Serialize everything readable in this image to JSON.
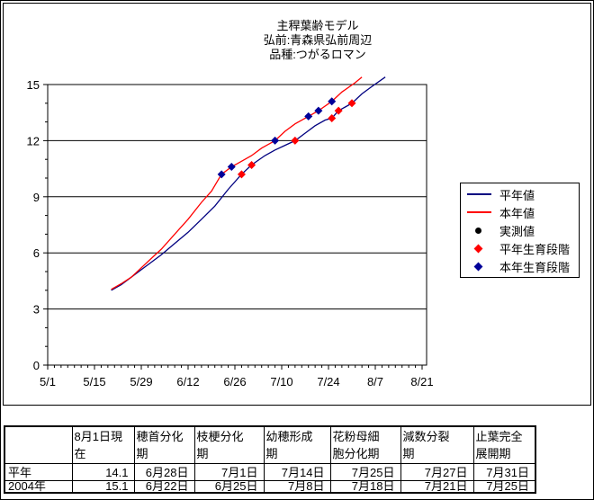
{
  "title": {
    "line1": "主稈葉齢モデル",
    "line2": "弘前:青森県弘前周辺",
    "line3": "品種:つがるロマン"
  },
  "colors": {
    "average_line": "#000080",
    "current_line": "#ff0000",
    "observed_dot": "#000000",
    "average_stage_diamond": "#ff0000",
    "current_stage_diamond": "#000099",
    "axis": "#000000",
    "background": "#ffffff"
  },
  "legend": {
    "position": "right",
    "items": [
      {
        "label": "平年値",
        "swatch": "line",
        "color": "#000080"
      },
      {
        "label": "本年値",
        "swatch": "line",
        "color": "#ff0000"
      },
      {
        "label": "実測値",
        "swatch": "dot",
        "color": "#000000"
      },
      {
        "label": "平年生育段階",
        "swatch": "diamond",
        "color": "#ff0000"
      },
      {
        "label": "本年生育段階",
        "swatch": "diamond",
        "color": "#000099"
      }
    ]
  },
  "chart_data": {
    "type": "line",
    "title": "主稈葉齢モデル 弘前:青森県弘前周辺 品種:つがるロマン",
    "xlabel": "",
    "ylabel": "",
    "ylim": [
      0,
      15
    ],
    "y_ticks": [
      0,
      3,
      6,
      9,
      12,
      15
    ],
    "y_minor_step": 1,
    "x_ticks": [
      "5/1",
      "5/15",
      "5/29",
      "6/12",
      "6/26",
      "7/10",
      "7/24",
      "8/7",
      "8/21"
    ],
    "x_minor_step_days": 2,
    "grid": "horizontal-major",
    "series": [
      {
        "name": "平年値",
        "type": "line",
        "color": "#000080",
        "points": [
          [
            "5/20",
            4.0
          ],
          [
            "5/23",
            4.3
          ],
          [
            "5/26",
            4.7
          ],
          [
            "5/29",
            5.1
          ],
          [
            "6/1",
            5.5
          ],
          [
            "6/4",
            5.9
          ],
          [
            "6/8",
            6.5
          ],
          [
            "6/12",
            7.1
          ],
          [
            "6/16",
            7.8
          ],
          [
            "6/20",
            8.5
          ],
          [
            "6/24",
            9.4
          ],
          [
            "6/28",
            10.2
          ],
          [
            "7/1",
            10.7
          ],
          [
            "7/5",
            11.2
          ],
          [
            "7/8",
            11.5
          ],
          [
            "7/11",
            11.75
          ],
          [
            "7/14",
            12.0
          ],
          [
            "7/17",
            12.4
          ],
          [
            "7/20",
            12.8
          ],
          [
            "7/23",
            13.1
          ],
          [
            "7/25",
            13.2
          ],
          [
            "7/27",
            13.6
          ],
          [
            "7/29",
            13.8
          ],
          [
            "7/31",
            14.0
          ],
          [
            "8/3",
            14.5
          ],
          [
            "8/6",
            14.9
          ],
          [
            "8/10",
            15.4
          ]
        ]
      },
      {
        "name": "本年値",
        "type": "line",
        "color": "#ff0000",
        "points": [
          [
            "5/20",
            4.05
          ],
          [
            "5/23",
            4.35
          ],
          [
            "5/26",
            4.7
          ],
          [
            "5/29",
            5.2
          ],
          [
            "6/1",
            5.7
          ],
          [
            "6/4",
            6.2
          ],
          [
            "6/8",
            7.0
          ],
          [
            "6/12",
            7.8
          ],
          [
            "6/16",
            8.7
          ],
          [
            "6/19",
            9.3
          ],
          [
            "6/22",
            10.2
          ],
          [
            "6/25",
            10.6
          ],
          [
            "6/28",
            10.9
          ],
          [
            "7/1",
            11.2
          ],
          [
            "7/4",
            11.6
          ],
          [
            "7/8",
            12.0
          ],
          [
            "7/11",
            12.5
          ],
          [
            "7/14",
            12.9
          ],
          [
            "7/18",
            13.3
          ],
          [
            "7/21",
            13.6
          ],
          [
            "7/25",
            14.1
          ],
          [
            "7/28",
            14.6
          ],
          [
            "8/1",
            15.1
          ],
          [
            "8/3",
            15.4
          ]
        ]
      },
      {
        "name": "実測値",
        "type": "dot",
        "color": "#000000",
        "points": []
      },
      {
        "name": "平年生育段階",
        "type": "diamond",
        "color": "#ff0000",
        "points": [
          [
            "6/28",
            10.2
          ],
          [
            "7/1",
            10.7
          ],
          [
            "7/14",
            12.0
          ],
          [
            "7/25",
            13.2
          ],
          [
            "7/27",
            13.6
          ],
          [
            "7/31",
            14.0
          ]
        ]
      },
      {
        "name": "本年生育段階",
        "type": "diamond",
        "color": "#000099",
        "points": [
          [
            "6/22",
            10.2
          ],
          [
            "6/25",
            10.6
          ],
          [
            "7/8",
            12.0
          ],
          [
            "7/18",
            13.3
          ],
          [
            "7/21",
            13.6
          ],
          [
            "7/25",
            14.1
          ]
        ]
      }
    ]
  },
  "table": {
    "headers": [
      "",
      "8月1日現\n在",
      "穂首分化\n期",
      "枝梗分化\n期",
      "幼穂形成\n期",
      "花粉母細\n胞分化期",
      "減数分裂\n期",
      "止葉完全\n展開期"
    ],
    "rows": [
      {
        "label": "平年",
        "values": [
          "14.1",
          "6月28日",
          "7月1日",
          "7月14日",
          "7月25日",
          "7月27日",
          "7月31日"
        ]
      },
      {
        "label": "2004年",
        "values": [
          "15.1",
          "6月22日",
          "6月25日",
          "7月8日",
          "7月18日",
          "7月21日",
          "7月25日"
        ]
      }
    ]
  }
}
